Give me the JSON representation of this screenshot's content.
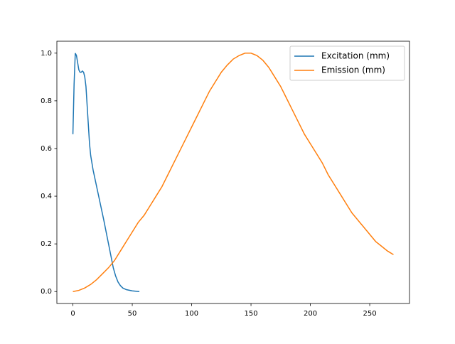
{
  "chart_data": {
    "type": "line",
    "xlim": [
      -13.5,
      283.5
    ],
    "ylim": [
      -0.05,
      1.05
    ],
    "xticks": [
      0,
      50,
      100,
      150,
      200,
      250
    ],
    "yticks": [
      {
        "value": 0,
        "label": "0.0"
      },
      {
        "value": 0.2,
        "label": "0.2"
      },
      {
        "value": 0.4,
        "label": "0.4"
      },
      {
        "value": 0.6,
        "label": "0.6"
      },
      {
        "value": 0.8,
        "label": "0.8"
      },
      {
        "value": 1,
        "label": "1.0"
      }
    ],
    "legend": "upper right",
    "series": [
      {
        "name": "Excitation (mm)",
        "color": "#1f77b4",
        "x": [
          0,
          1,
          2,
          3,
          4,
          5,
          6,
          7,
          8,
          9,
          10,
          11,
          12,
          13,
          14,
          15,
          17,
          20,
          23,
          26,
          28,
          30,
          32,
          34,
          36,
          38,
          40,
          42,
          45,
          50,
          56
        ],
        "values": [
          0.66,
          0.87,
          1.0,
          0.99,
          0.96,
          0.93,
          0.92,
          0.92,
          0.925,
          0.92,
          0.9,
          0.86,
          0.78,
          0.7,
          0.62,
          0.57,
          0.51,
          0.44,
          0.37,
          0.3,
          0.25,
          0.2,
          0.15,
          0.1,
          0.065,
          0.04,
          0.025,
          0.015,
          0.008,
          0.003,
          0.0
        ]
      },
      {
        "name": "Emission (mm)",
        "color": "#ff7f0e",
        "x": [
          0,
          5,
          10,
          15,
          20,
          25,
          30,
          35,
          40,
          45,
          50,
          55,
          60,
          65,
          70,
          75,
          80,
          85,
          90,
          95,
          100,
          105,
          110,
          115,
          120,
          125,
          130,
          135,
          140,
          145,
          150,
          155,
          160,
          165,
          170,
          175,
          180,
          185,
          190,
          195,
          200,
          205,
          210,
          215,
          220,
          225,
          230,
          235,
          240,
          245,
          250,
          255,
          260,
          265,
          270
        ],
        "values": [
          0,
          0.005,
          0.015,
          0.03,
          0.05,
          0.075,
          0.1,
          0.13,
          0.17,
          0.21,
          0.25,
          0.29,
          0.32,
          0.36,
          0.4,
          0.44,
          0.49,
          0.54,
          0.59,
          0.64,
          0.69,
          0.74,
          0.79,
          0.84,
          0.88,
          0.92,
          0.95,
          0.975,
          0.99,
          1.0,
          1.0,
          0.99,
          0.97,
          0.94,
          0.9,
          0.86,
          0.81,
          0.76,
          0.71,
          0.66,
          0.62,
          0.58,
          0.54,
          0.49,
          0.45,
          0.41,
          0.37,
          0.33,
          0.3,
          0.27,
          0.24,
          0.21,
          0.19,
          0.17,
          0.155
        ]
      }
    ]
  }
}
